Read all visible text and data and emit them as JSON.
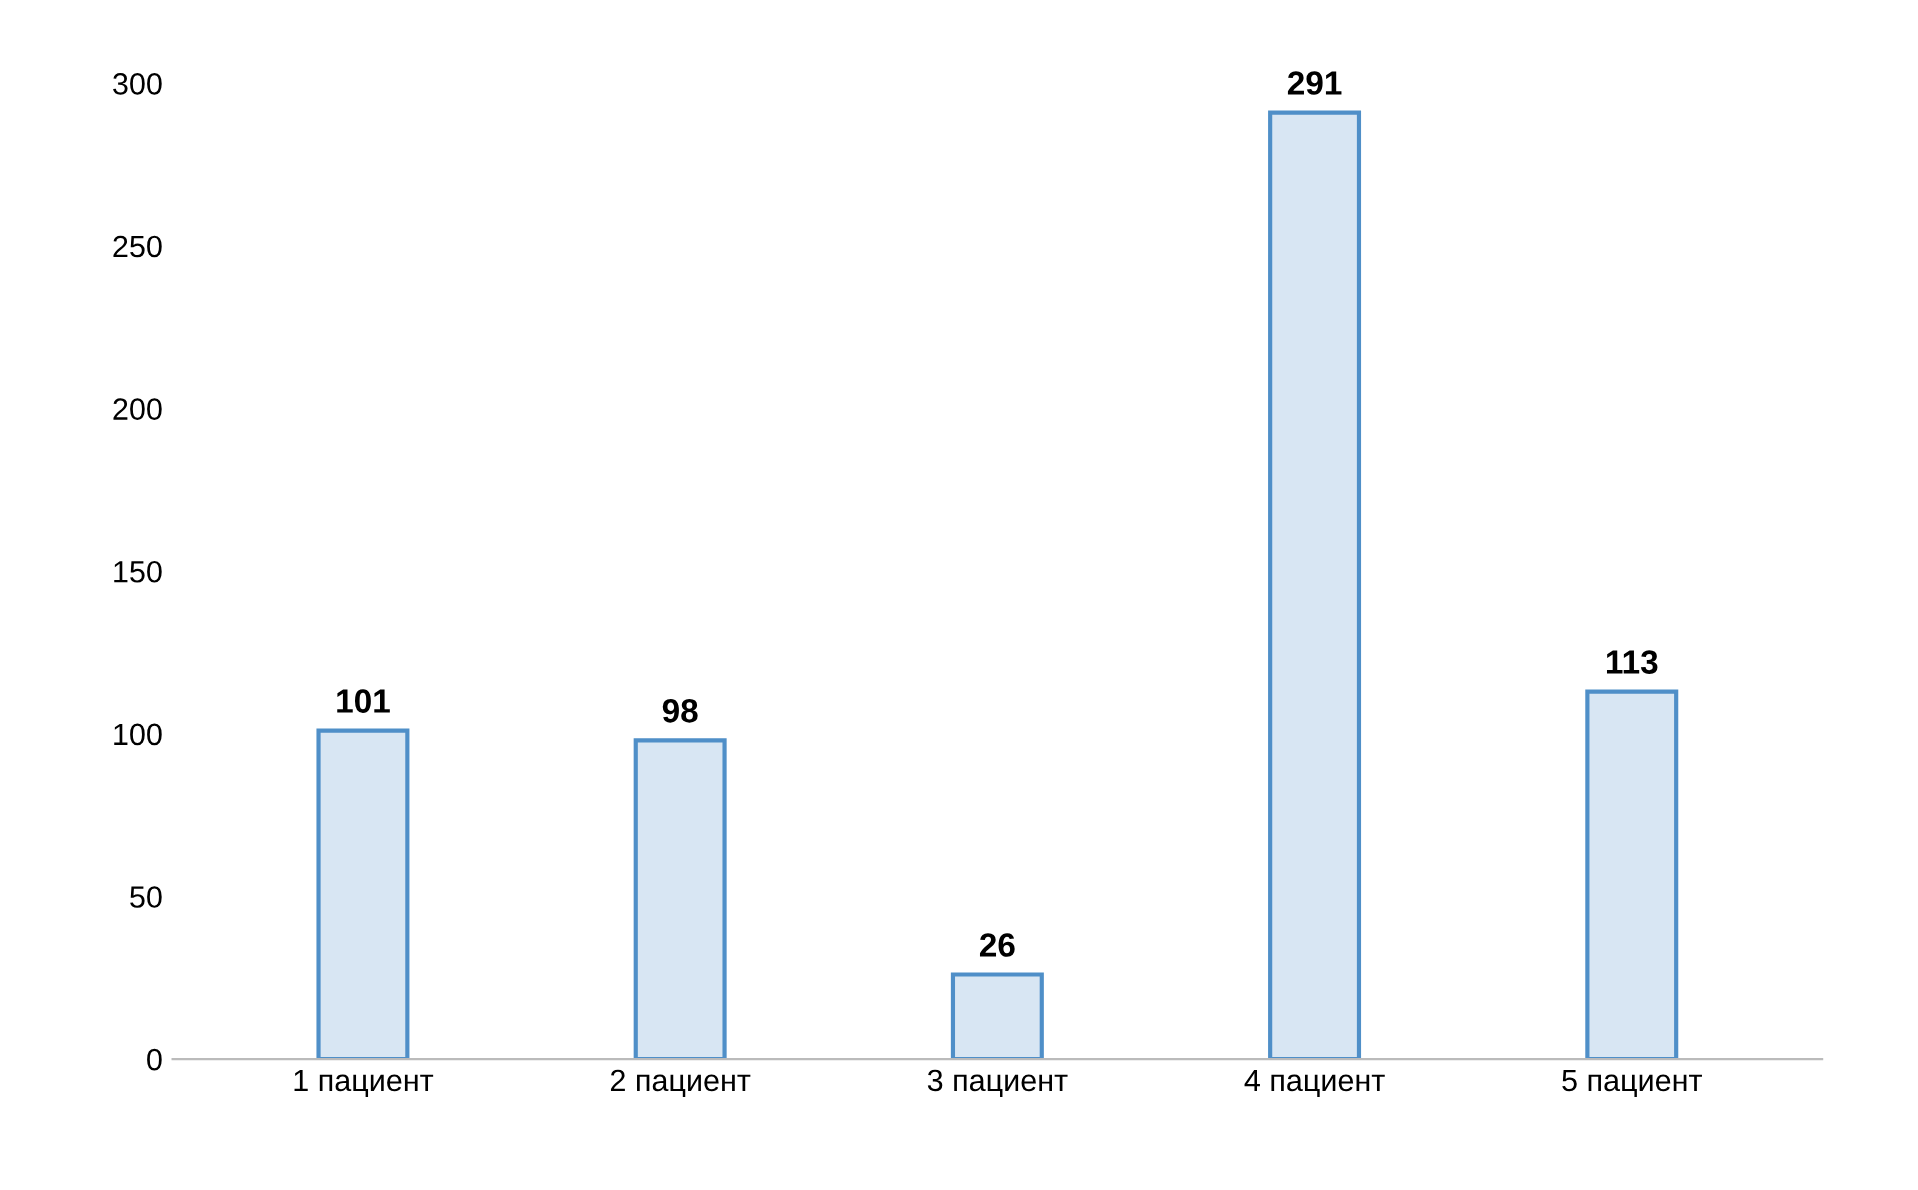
{
  "chart_data": {
    "type": "bar",
    "categories": [
      "1 пациент",
      "2 пациент",
      "3 пациент",
      "4 пациент",
      "5 пациент"
    ],
    "values": [
      101,
      98,
      26,
      291,
      113
    ],
    "color": "#4f8fc8",
    "ylim": [
      0,
      300
    ],
    "yticks": [
      0,
      50,
      100,
      150,
      200,
      250,
      300
    ],
    "data_labels": true,
    "grid": false,
    "legend": false
  }
}
